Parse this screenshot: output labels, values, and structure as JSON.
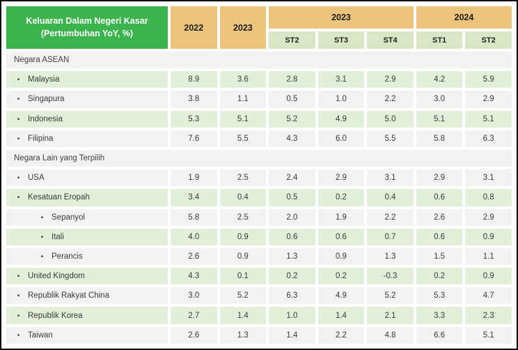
{
  "colors": {
    "header_green": "#3cb44e",
    "header_tan": "#edc47c",
    "subheader_green": "#d9e7c6",
    "row_green": "#e2efd9",
    "row_gray": "#f2f2f2",
    "outer_border": "#000000"
  },
  "bullet": "•",
  "header": {
    "title_line1": "Keluaran Dalam Negeri Kasar",
    "title_line2": "(Pertumbuhan YoY, %)",
    "year_columns": [
      "2022",
      "2023"
    ],
    "period_groups": [
      {
        "label": "2023",
        "colspan": 3
      },
      {
        "label": "2024",
        "colspan": 2
      }
    ],
    "period_columns": [
      "ST2",
      "ST3",
      "ST4",
      "ST1",
      "ST2"
    ]
  },
  "chart_data": {
    "type": "table",
    "title": "Keluaran Dalam Negeri Kasar (Pertumbuhan YoY, %)",
    "columns": [
      "2022",
      "2023",
      "2023 ST2",
      "2023 ST3",
      "2023 ST4",
      "2024 ST1",
      "2024 ST2"
    ],
    "rows": [
      {
        "type": "section",
        "label": "Negara ASEAN"
      },
      {
        "type": "data",
        "label": "Malaysia",
        "indent": 1,
        "shade": "green",
        "values": [
          8.9,
          3.6,
          2.8,
          3.1,
          2.9,
          4.2,
          5.9
        ]
      },
      {
        "type": "data",
        "label": "Singapura",
        "indent": 1,
        "shade": "gray",
        "values": [
          3.8,
          1.1,
          0.5,
          1.0,
          2.2,
          3.0,
          2.9
        ]
      },
      {
        "type": "data",
        "label": "Indonesia",
        "indent": 1,
        "shade": "green",
        "values": [
          5.3,
          5.1,
          5.2,
          4.9,
          5.0,
          5.1,
          5.1
        ]
      },
      {
        "type": "data",
        "label": "Filipina",
        "indent": 1,
        "shade": "gray",
        "values": [
          7.6,
          5.5,
          4.3,
          6.0,
          5.5,
          5.8,
          6.3
        ]
      },
      {
        "type": "section",
        "label": "Negara Lain yang Terpilih"
      },
      {
        "type": "data",
        "label": "USA",
        "indent": 1,
        "shade": "gray",
        "values": [
          1.9,
          2.5,
          2.4,
          2.9,
          3.1,
          2.9,
          3.1
        ]
      },
      {
        "type": "data",
        "label": "Kesatuan Eropah",
        "indent": 1,
        "shade": "green",
        "values": [
          3.4,
          0.4,
          0.5,
          0.2,
          0.4,
          0.6,
          0.8
        ]
      },
      {
        "type": "data",
        "label": "Sepanyol",
        "indent": 2,
        "shade": "gray",
        "values": [
          5.8,
          2.5,
          2.0,
          1.9,
          2.2,
          2.6,
          2.9
        ]
      },
      {
        "type": "data",
        "label": "Itali",
        "indent": 2,
        "shade": "green",
        "values": [
          4.0,
          0.9,
          0.6,
          0.6,
          0.7,
          0.6,
          0.9
        ]
      },
      {
        "type": "data",
        "label": "Perancis",
        "indent": 2,
        "shade": "gray",
        "values": [
          2.6,
          0.9,
          1.3,
          0.9,
          1.3,
          1.5,
          1.1
        ]
      },
      {
        "type": "data",
        "label": "United Kingdom",
        "indent": 1,
        "shade": "green",
        "values": [
          4.3,
          0.1,
          0.2,
          0.2,
          -0.3,
          0.2,
          0.9
        ]
      },
      {
        "type": "data",
        "label": "Republik Rakyat China",
        "indent": 1,
        "shade": "gray",
        "values": [
          3.0,
          5.2,
          6.3,
          4.9,
          5.2,
          5.3,
          4.7
        ]
      },
      {
        "type": "data",
        "label": "Republik Korea",
        "indent": 1,
        "shade": "green",
        "values": [
          2.7,
          1.4,
          1.0,
          1.4,
          2.1,
          3.3,
          2.3
        ]
      },
      {
        "type": "data",
        "label": "Taiwan",
        "indent": 1,
        "shade": "gray",
        "values": [
          2.6,
          1.3,
          1.4,
          2.2,
          4.8,
          6.6,
          5.1
        ]
      }
    ]
  }
}
